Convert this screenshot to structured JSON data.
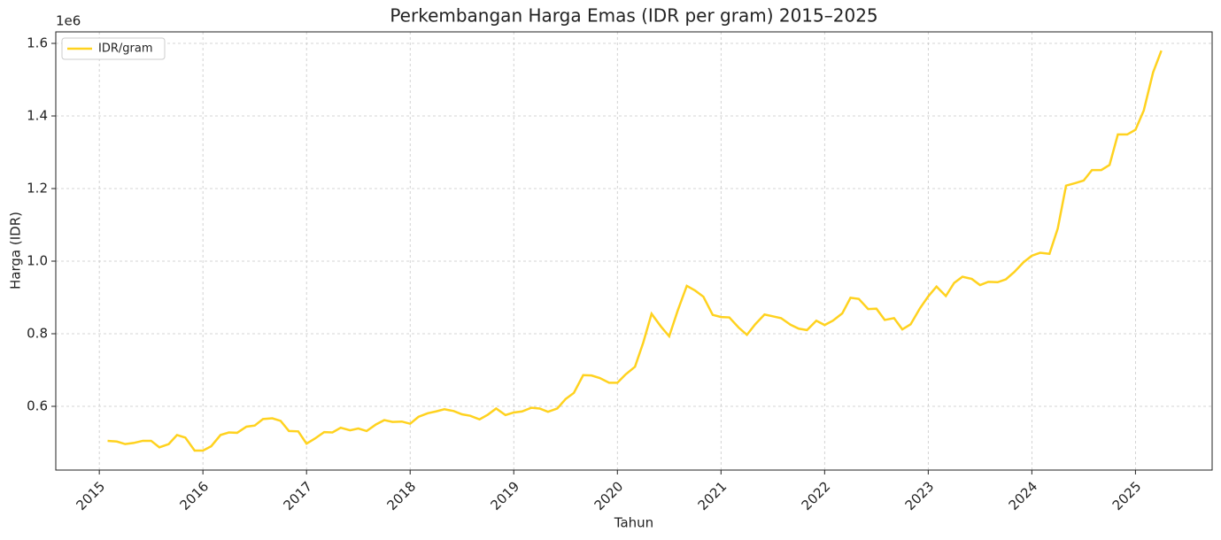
{
  "chart_data": {
    "type": "line",
    "title": "Perkembangan Harga Emas (IDR per gram) 2015–2025",
    "x_label": "Tahun",
    "y_label": "Harga (IDR)",
    "y_offset_label": "1e6",
    "legend": "upper left",
    "grid": true,
    "x": [
      2015.08,
      2015.17,
      2015.25,
      2015.33,
      2015.42,
      2015.5,
      2015.58,
      2015.67,
      2015.75,
      2015.83,
      2015.92,
      2016,
      2016.08,
      2016.17,
      2016.25,
      2016.33,
      2016.42,
      2016.5,
      2016.58,
      2016.67,
      2016.75,
      2016.83,
      2016.92,
      2017,
      2017.08,
      2017.17,
      2017.25,
      2017.33,
      2017.42,
      2017.5,
      2017.58,
      2017.67,
      2017.75,
      2017.83,
      2017.92,
      2018,
      2018.08,
      2018.17,
      2018.25,
      2018.33,
      2018.42,
      2018.5,
      2018.58,
      2018.67,
      2018.75,
      2018.83,
      2018.92,
      2019,
      2019.08,
      2019.17,
      2019.25,
      2019.33,
      2019.42,
      2019.5,
      2019.58,
      2019.67,
      2019.75,
      2019.83,
      2019.92,
      2020,
      2020.08,
      2020.17,
      2020.25,
      2020.33,
      2020.42,
      2020.5,
      2020.58,
      2020.67,
      2020.75,
      2020.83,
      2020.92,
      2021,
      2021.08,
      2021.17,
      2021.25,
      2021.33,
      2021.42,
      2021.5,
      2021.58,
      2021.67,
      2021.75,
      2021.83,
      2021.92,
      2022,
      2022.08,
      2022.17,
      2022.25,
      2022.33,
      2022.42,
      2022.5,
      2022.58,
      2022.67,
      2022.75,
      2022.83,
      2022.92,
      2023,
      2023.08,
      2023.17,
      2023.25,
      2023.33,
      2023.42,
      2023.5,
      2023.58,
      2023.67,
      2023.75,
      2023.83,
      2023.92,
      2024,
      2024.08,
      2024.17,
      2024.25,
      2024.33,
      2024.42,
      2024.5,
      2024.58,
      2024.67,
      2024.75,
      2024.83,
      2024.92,
      2025,
      2025.08,
      2025.17,
      2025.25
    ],
    "series": [
      {
        "name": "IDR/gram",
        "color": "#ffd21f",
        "values": [
          505000,
          503000,
          496000,
          499000,
          505000,
          505000,
          487000,
          496000,
          521000,
          514000,
          478000,
          478000,
          490000,
          521000,
          528000,
          527000,
          544000,
          547000,
          565000,
          567000,
          560000,
          532000,
          531000,
          497000,
          511000,
          529000,
          528000,
          541000,
          534000,
          539000,
          532000,
          550000,
          562000,
          557000,
          558000,
          552000,
          571000,
          581000,
          586000,
          592000,
          587000,
          578000,
          574000,
          564000,
          577000,
          594000,
          576000,
          583000,
          586000,
          596000,
          594000,
          585000,
          594000,
          620000,
          637000,
          686000,
          685000,
          678000,
          665000,
          665000,
          688000,
          709000,
          776000,
          855000,
          820000,
          793000,
          862000,
          932000,
          919000,
          902000,
          852000,
          846000,
          845000,
          817000,
          797000,
          826000,
          853000,
          848000,
          843000,
          825000,
          814000,
          810000,
          836000,
          824000,
          836000,
          856000,
          899000,
          896000,
          868000,
          869000,
          838000,
          843000,
          812000,
          826000,
          870000,
          903000,
          930000,
          904000,
          940000,
          957000,
          951000,
          934000,
          943000,
          942000,
          950000,
          970000,
          997000,
          1015000,
          1023000,
          1020000,
          1090000,
          1208000,
          1215000,
          1222000,
          1251000,
          1251000,
          1265000,
          1349000,
          1349000,
          1362000,
          1415000,
          1520000,
          1580000
        ]
      }
    ],
    "xlim": [
      2014.58,
      2025.74
    ],
    "xticks": [
      2015,
      2016,
      2017,
      2018,
      2019,
      2020,
      2021,
      2022,
      2023,
      2024,
      2025
    ],
    "ylim": [
      424400,
      1631700
    ],
    "yticks": [
      {
        "value": 600000,
        "label": "0.6"
      },
      {
        "value": 800000,
        "label": "0.8"
      },
      {
        "value": 1000000,
        "label": "1.0"
      },
      {
        "value": 1200000,
        "label": "1.2"
      },
      {
        "value": 1400000,
        "label": "1.4"
      },
      {
        "value": 1600000,
        "label": "1.6"
      }
    ]
  }
}
